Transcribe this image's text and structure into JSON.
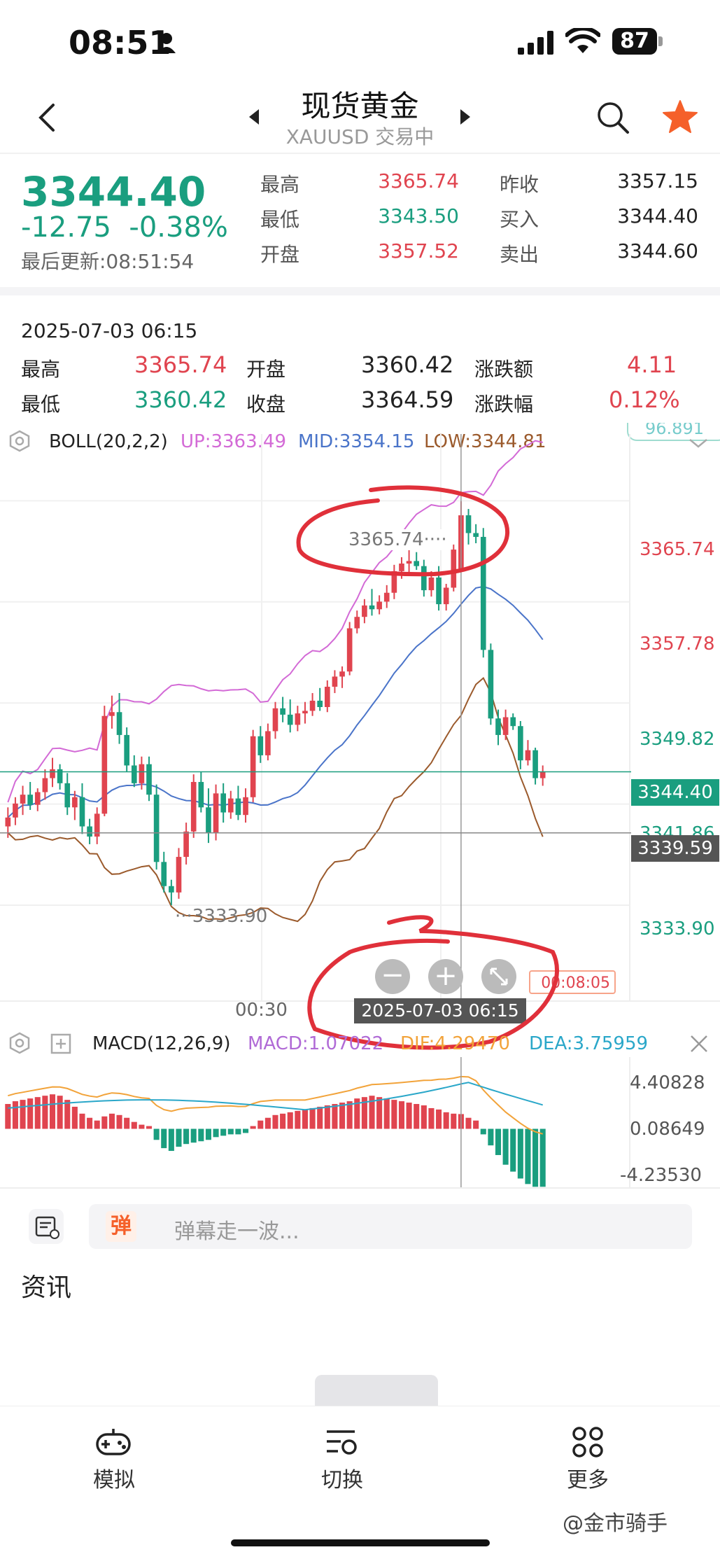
{
  "status": {
    "time": "08:51",
    "battery": "87"
  },
  "nav": {
    "title": "现货黄金",
    "subtitle": "XAUUSD 交易中"
  },
  "quote": {
    "price": "3344.40",
    "change": "-12.75",
    "change_pct": "-0.38%",
    "updated": "最后更新:08:51:54",
    "rows": [
      {
        "l1": "最高",
        "v1": "3365.74",
        "l2": "昨收",
        "v2": "3357.15"
      },
      {
        "l1": "最低",
        "v1": "3343.50",
        "l2": "买入",
        "v2": "3344.40"
      },
      {
        "l1": "开盘",
        "v1": "3357.52",
        "l2": "卖出",
        "v2": "3344.60"
      }
    ]
  },
  "tooltip": {
    "date": "2025-07-03 06:15",
    "high_label": "最高",
    "high": "3365.74",
    "low_label": "最低",
    "low": "3360.42",
    "open_label": "开盘",
    "open": "3360.42",
    "close_label": "收盘",
    "close": "3364.59",
    "chg_label": "涨跌额",
    "chg": "4.11",
    "chgpct_label": "涨跌幅",
    "chgpct": "0.12%"
  },
  "boll": {
    "name": "BOLL(20,2,2)",
    "up": "UP:3363.49",
    "mid": "MID:3354.15",
    "low": "LOW:3344.81"
  },
  "macd": {
    "name": "MACD(12,26,9)",
    "macd": "MACD:1.07022",
    "dif": "DIF:4.29470",
    "dea": "DEA:3.75959"
  },
  "chart_labels": {
    "high_mark": "3365.74",
    "low_mark": "3333.90",
    "time_tick": "00:30",
    "crosshair_date": "2025-07-03 06:15",
    "countdown": "00:08:05",
    "price_axis": [
      "3365.74",
      "3357.78",
      "3349.82",
      "3341.86",
      "3333.90"
    ],
    "current_price": "3344.40",
    "cross_price": "3339.59",
    "macd_axis": [
      "4.40828",
      "0.08649",
      "-4.23530"
    ],
    "partial_top_value": "96.891"
  },
  "colors": {
    "up": "#e0444f",
    "down": "#1a9e7f",
    "boll_up": "#d36ad6",
    "boll_mid": "#4a74c9",
    "boll_low": "#9b5a2c",
    "dif": "#f2a33a",
    "dea": "#2aa7c9",
    "annotation": "#e0303a"
  },
  "chart_data": {
    "type": "candlestick",
    "ohlc": [
      [
        3340.1,
        3341.6,
        3339.2,
        3340.8
      ],
      [
        3340.8,
        3342.4,
        3340.2,
        3341.9
      ],
      [
        3341.9,
        3343.3,
        3341.0,
        3342.6
      ],
      [
        3342.6,
        3343.6,
        3341.4,
        3341.8
      ],
      [
        3341.8,
        3343.1,
        3341.3,
        3342.8
      ],
      [
        3342.8,
        3344.6,
        3342.2,
        3343.9
      ],
      [
        3343.9,
        3345.5,
        3343.2,
        3344.6
      ],
      [
        3344.6,
        3345.0,
        3343.0,
        3343.5
      ],
      [
        3343.5,
        3344.3,
        3341.0,
        3341.6
      ],
      [
        3341.6,
        3342.9,
        3340.6,
        3342.4
      ],
      [
        3342.4,
        3343.5,
        3339.5,
        3340.1
      ],
      [
        3340.1,
        3340.7,
        3338.7,
        3339.3
      ],
      [
        3339.3,
        3341.6,
        3338.7,
        3341.1
      ],
      [
        3341.1,
        3349.6,
        3340.9,
        3348.8
      ],
      [
        3348.8,
        3350.4,
        3347.8,
        3349.1
      ],
      [
        3349.1,
        3350.6,
        3346.6,
        3347.3
      ],
      [
        3347.3,
        3347.9,
        3344.4,
        3344.9
      ],
      [
        3344.9,
        3345.7,
        3343.2,
        3343.5
      ],
      [
        3343.5,
        3345.6,
        3343.0,
        3345.0
      ],
      [
        3345.0,
        3345.6,
        3342.1,
        3342.6
      ],
      [
        3342.6,
        3343.4,
        3336.7,
        3337.3
      ],
      [
        3337.3,
        3338.1,
        3334.9,
        3335.4
      ],
      [
        3335.4,
        3335.9,
        3333.9,
        3334.9
      ],
      [
        3334.9,
        3338.4,
        3334.4,
        3337.7
      ],
      [
        3337.7,
        3340.4,
        3337.1,
        3339.7
      ],
      [
        3339.7,
        3344.2,
        3339.2,
        3343.6
      ],
      [
        3343.6,
        3344.4,
        3341.2,
        3341.6
      ],
      [
        3341.6,
        3343.1,
        3338.8,
        3339.6
      ],
      [
        3339.6,
        3343.4,
        3339.0,
        3342.7
      ],
      [
        3342.7,
        3343.5,
        3340.4,
        3341.2
      ],
      [
        3341.2,
        3342.9,
        3340.7,
        3342.3
      ],
      [
        3342.3,
        3343.3,
        3340.6,
        3341.0
      ],
      [
        3341.0,
        3343.1,
        3340.4,
        3342.4
      ],
      [
        3342.4,
        3347.7,
        3342.0,
        3347.2
      ],
      [
        3347.2,
        3348.0,
        3345.1,
        3345.7
      ],
      [
        3345.7,
        3348.2,
        3345.3,
        3347.6
      ],
      [
        3347.6,
        3349.9,
        3347.0,
        3349.4
      ],
      [
        3349.4,
        3350.3,
        3348.3,
        3348.9
      ],
      [
        3348.9,
        3350.1,
        3347.5,
        3348.1
      ],
      [
        3348.1,
        3349.6,
        3347.6,
        3349.0
      ],
      [
        3349.0,
        3349.9,
        3348.2,
        3349.2
      ],
      [
        3349.2,
        3350.6,
        3348.8,
        3350.0
      ],
      [
        3350.0,
        3351.0,
        3349.2,
        3349.5
      ],
      [
        3349.5,
        3351.6,
        3349.1,
        3351.1
      ],
      [
        3351.1,
        3352.4,
        3350.6,
        3351.9
      ],
      [
        3351.9,
        3352.7,
        3351.0,
        3352.3
      ],
      [
        3352.3,
        3356.2,
        3352.0,
        3355.7
      ],
      [
        3355.7,
        3357.1,
        3355.3,
        3356.6
      ],
      [
        3356.6,
        3358.0,
        3356.1,
        3357.5
      ],
      [
        3357.5,
        3358.8,
        3356.7,
        3357.2
      ],
      [
        3357.2,
        3358.3,
        3356.8,
        3357.8
      ],
      [
        3357.8,
        3359.1,
        3357.3,
        3358.5
      ],
      [
        3358.5,
        3360.7,
        3358.0,
        3360.2
      ],
      [
        3360.2,
        3361.3,
        3359.6,
        3360.8
      ],
      [
        3360.8,
        3361.9,
        3360.1,
        3361.0
      ],
      [
        3361.0,
        3361.7,
        3360.3,
        3360.6
      ],
      [
        3360.6,
        3361.1,
        3358.2,
        3358.7
      ],
      [
        3358.7,
        3360.2,
        3358.2,
        3359.7
      ],
      [
        3359.7,
        3360.6,
        3357.1,
        3357.6
      ],
      [
        3357.6,
        3359.2,
        3357.1,
        3358.9
      ],
      [
        3358.9,
        3362.3,
        3358.6,
        3361.9
      ],
      [
        3360.4,
        3365.7,
        3360.4,
        3364.6
      ],
      [
        3364.6,
        3365.1,
        3362.3,
        3363.2
      ],
      [
        3363.2,
        3363.9,
        3362.4,
        3362.9
      ],
      [
        3362.9,
        3363.6,
        3353.4,
        3354.0
      ],
      [
        3354.0,
        3354.5,
        3348.1,
        3348.6
      ],
      [
        3348.6,
        3349.3,
        3346.5,
        3347.3
      ],
      [
        3347.3,
        3349.3,
        3346.9,
        3348.7
      ],
      [
        3348.7,
        3349.0,
        3347.7,
        3348.0
      ],
      [
        3348.0,
        3348.4,
        3344.6,
        3345.3
      ],
      [
        3345.3,
        3346.9,
        3344.9,
        3346.1
      ],
      [
        3346.1,
        3346.3,
        3343.4,
        3343.9
      ],
      [
        3343.9,
        3344.9,
        3343.3,
        3344.4
      ]
    ],
    "y_range": [
      3328.0,
      3371.0
    ],
    "x_tick": "00:30",
    "macd_hist": [
      1.8,
      2.0,
      2.1,
      2.2,
      2.3,
      2.4,
      2.5,
      2.4,
      2.1,
      1.6,
      1.1,
      0.8,
      0.6,
      0.9,
      1.1,
      1.0,
      0.8,
      0.5,
      0.3,
      0.2,
      -0.8,
      -1.4,
      -1.6,
      -1.3,
      -1.1,
      -1.0,
      -0.9,
      -0.8,
      -0.6,
      -0.5,
      -0.4,
      -0.4,
      -0.3,
      0.2,
      0.6,
      0.8,
      1.0,
      1.1,
      1.2,
      1.3,
      1.4,
      1.5,
      1.6,
      1.7,
      1.8,
      1.9,
      2.0,
      2.2,
      2.3,
      2.4,
      2.3,
      2.2,
      2.1,
      2.0,
      1.9,
      1.8,
      1.7,
      1.5,
      1.4,
      1.2,
      1.1,
      1.07,
      0.8,
      0.6,
      -0.4,
      -1.2,
      -1.9,
      -2.6,
      -3.1,
      -3.6,
      -4.0,
      -4.2,
      -4.2
    ],
    "macd_range": [
      -4.2353,
      5.2
    ]
  }
}
